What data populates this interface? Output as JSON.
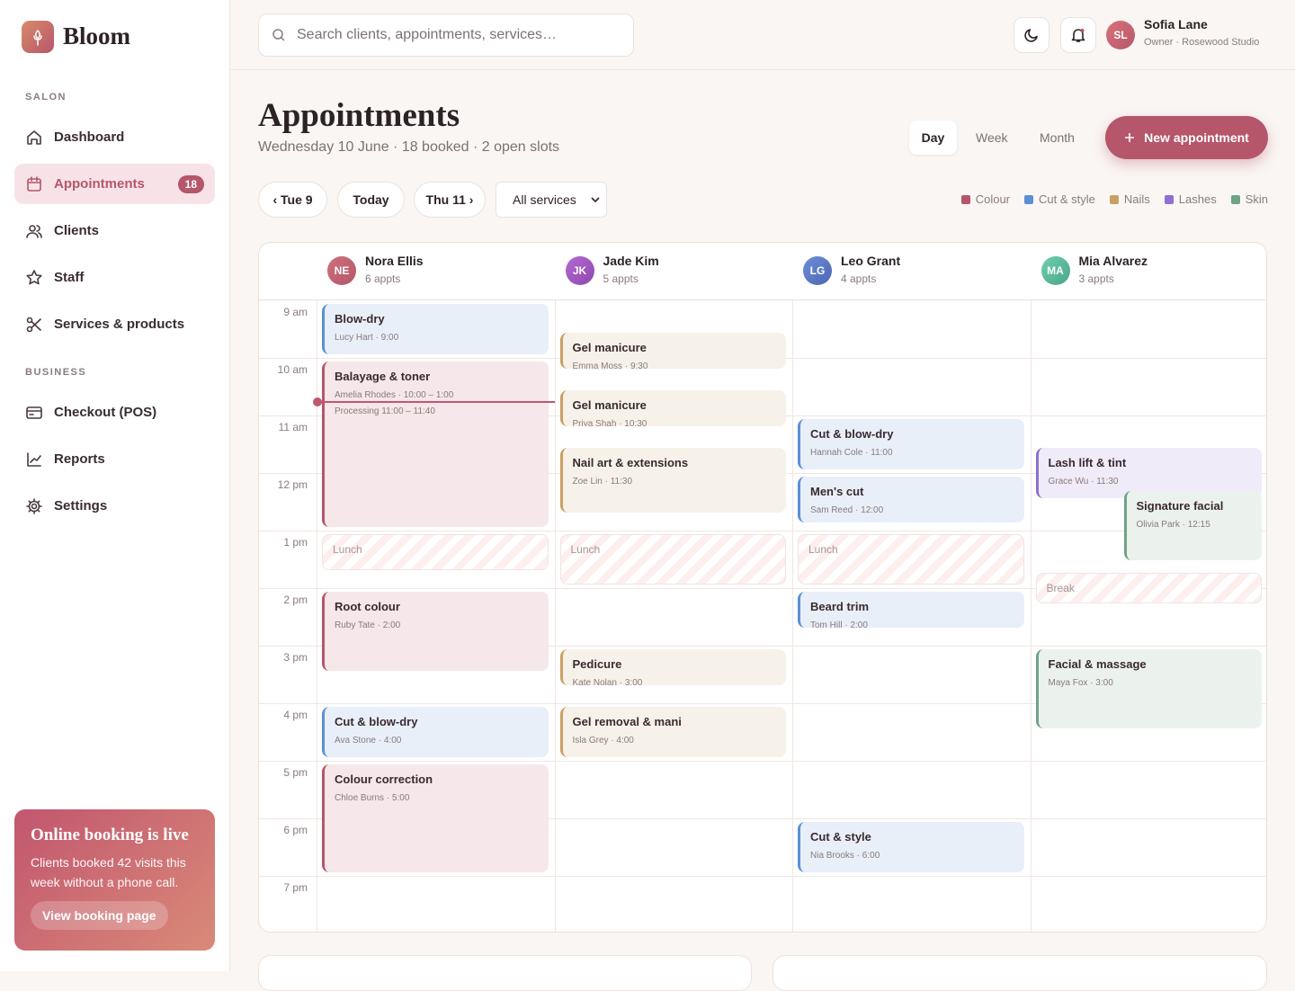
{
  "sidebar": {
    "brand": "Bloom",
    "sections": [
      {
        "label": "SALON",
        "items": [
          {
            "label": "Dashboard"
          },
          {
            "label": "Appointments",
            "badge": 18
          },
          {
            "label": "Clients"
          },
          {
            "label": "Staff"
          },
          {
            "label": "Services & products"
          }
        ]
      },
      {
        "label": "BUSINESS",
        "items": [
          {
            "label": "Checkout (POS)"
          },
          {
            "label": "Reports"
          },
          {
            "label": "Settings"
          }
        ]
      }
    ],
    "promo": {
      "title": "Online booking is live",
      "text": "Clients booked 42 visits this week without a phone call.",
      "button": "View booking page"
    }
  },
  "topbar": {
    "search_placeholder": "Search clients, appointments, services…",
    "user": {
      "initials": "SL",
      "name": "Sofia Lane",
      "role": "Owner · Rosewood Studio"
    }
  },
  "header": {
    "title": "Appointments",
    "subtitle": "Wednesday 10 June · 18 booked · 2 open slots",
    "views": [
      "Day",
      "Week",
      "Month"
    ],
    "new_button": "New appointment"
  },
  "toolbar": {
    "prev": "‹ Tue 9",
    "today": "Today",
    "next": "Thu 11 ›",
    "filter": "All services",
    "legend": [
      {
        "label": "Colour",
        "color": "#b5566a"
      },
      {
        "label": "Cut & style",
        "color": "#5b8fd6"
      },
      {
        "label": "Nails",
        "color": "#c9a063"
      },
      {
        "label": "Lashes",
        "color": "#8f6fd0"
      },
      {
        "label": "Skin",
        "color": "#6fa386"
      }
    ]
  },
  "calendar": {
    "times": [
      "9 am",
      "10 am",
      "11 am",
      "12 pm",
      "1 pm",
      "2 pm",
      "3 pm",
      "4 pm",
      "5 pm",
      "6 pm",
      "7 pm"
    ],
    "staff": [
      {
        "initials": "NE",
        "name": "Nora Ellis",
        "count": "6 appts",
        "appointments": [
          {
            "title": "Blow-dry",
            "detail": "Lucy Hart · 9:00"
          },
          {
            "title": "Balayage & toner",
            "detail": "Amelia Rhodes · 10:00 – 1:00",
            "note": "Processing 11:00 – 11:40"
          },
          {
            "label": "Lunch"
          },
          {
            "title": "Root colour",
            "detail": "Ruby Tate · 2:00"
          },
          {
            "title": "Cut & blow-dry",
            "detail": "Ava Stone · 4:00"
          },
          {
            "title": "Colour correction",
            "detail": "Chloe Burns · 5:00"
          }
        ]
      },
      {
        "initials": "JK",
        "name": "Jade Kim",
        "count": "5 appts",
        "appointments": [
          {
            "title": "Gel manicure",
            "detail": "Emma Moss · 9:30"
          },
          {
            "title": "Gel manicure",
            "detail": "Priya Shah · 10:30"
          },
          {
            "title": "Nail art & extensions",
            "detail": "Zoe Lin · 11:30"
          },
          {
            "label": "Lunch"
          },
          {
            "title": "Pedicure",
            "detail": "Kate Nolan · 3:00"
          },
          {
            "title": "Gel removal & mani",
            "detail": "Isla Grey · 4:00"
          }
        ]
      },
      {
        "initials": "LG",
        "name": "Leo Grant",
        "count": "4 appts",
        "appointments": [
          {
            "title": "Cut & blow-dry",
            "detail": "Hannah Cole · 11:00"
          },
          {
            "title": "Men's cut",
            "detail": "Sam Reed · 12:00"
          },
          {
            "label": "Lunch"
          },
          {
            "title": "Beard trim",
            "detail": "Tom Hill · 2:00"
          },
          {
            "title": "Cut & style",
            "detail": "Nia Brooks · 6:00"
          }
        ]
      },
      {
        "initials": "MA",
        "name": "Mia Alvarez",
        "count": "3 appts",
        "appointments": [
          {
            "title": "Lash lift & tint",
            "detail": "Grace Wu · 11:30"
          },
          {
            "title": "Signature facial",
            "detail": "Olivia Park · 12:15"
          },
          {
            "label": "Break"
          },
          {
            "title": "Facial & massage",
            "detail": "Maya Fox · 3:00"
          }
        ]
      }
    ]
  }
}
